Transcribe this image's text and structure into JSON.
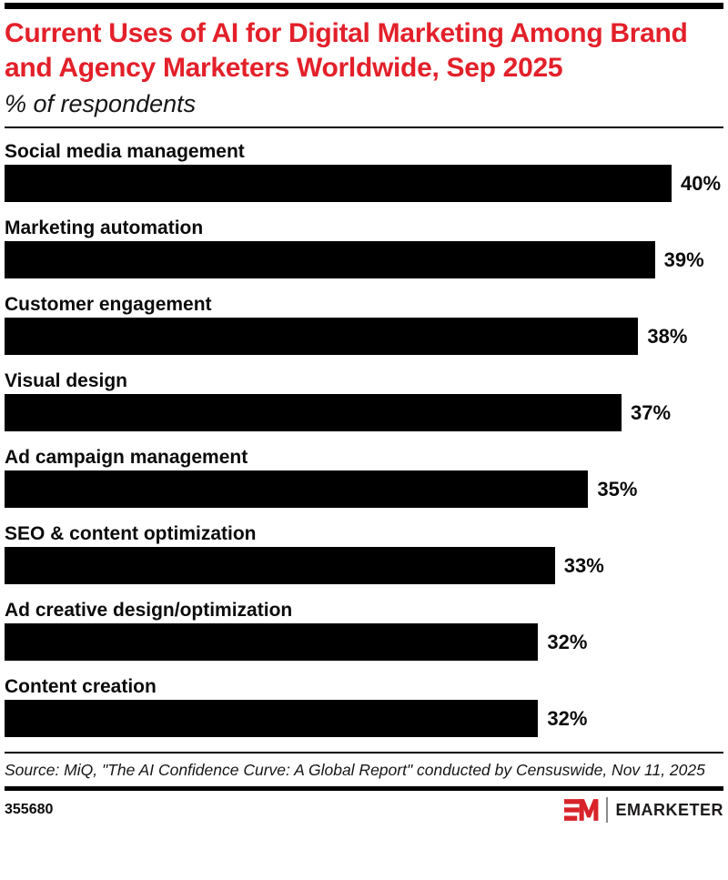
{
  "header": {
    "title": "Current Uses of AI for Digital Marketing Among Brand and Agency Marketers Worldwide, Sep 2025",
    "subtitle": "% of respondents"
  },
  "chart_data": {
    "type": "bar",
    "orientation": "horizontal",
    "title": "Current Uses of AI for Digital Marketing Among Brand and Agency Marketers Worldwide, Sep 2025",
    "subtitle": "% of respondents",
    "categories": [
      "Social media management",
      "Marketing automation",
      "Customer engagement",
      "Visual design",
      "Ad campaign management",
      "SEO & content optimization",
      "Ad creative design/optimization",
      "Content creation"
    ],
    "values": [
      40,
      39,
      38,
      37,
      35,
      33,
      32,
      32
    ],
    "value_suffix": "%",
    "xlim": [
      0,
      40
    ],
    "grid": false,
    "legend": false,
    "bar_color": "#000000",
    "value_labels_position": "right-of-bar"
  },
  "source": {
    "text": "Source: MiQ, \"The AI Confidence Curve: A Global Report\" conducted by Censuswide, Nov 11, 2025"
  },
  "footer": {
    "chart_id": "355680",
    "brand_name": "EMARKETER",
    "logo_monogram": "EM"
  },
  "colors": {
    "title_red": "#E3202A",
    "logo_red": "#D8232A",
    "bar": "#000000",
    "text": "#111111"
  }
}
